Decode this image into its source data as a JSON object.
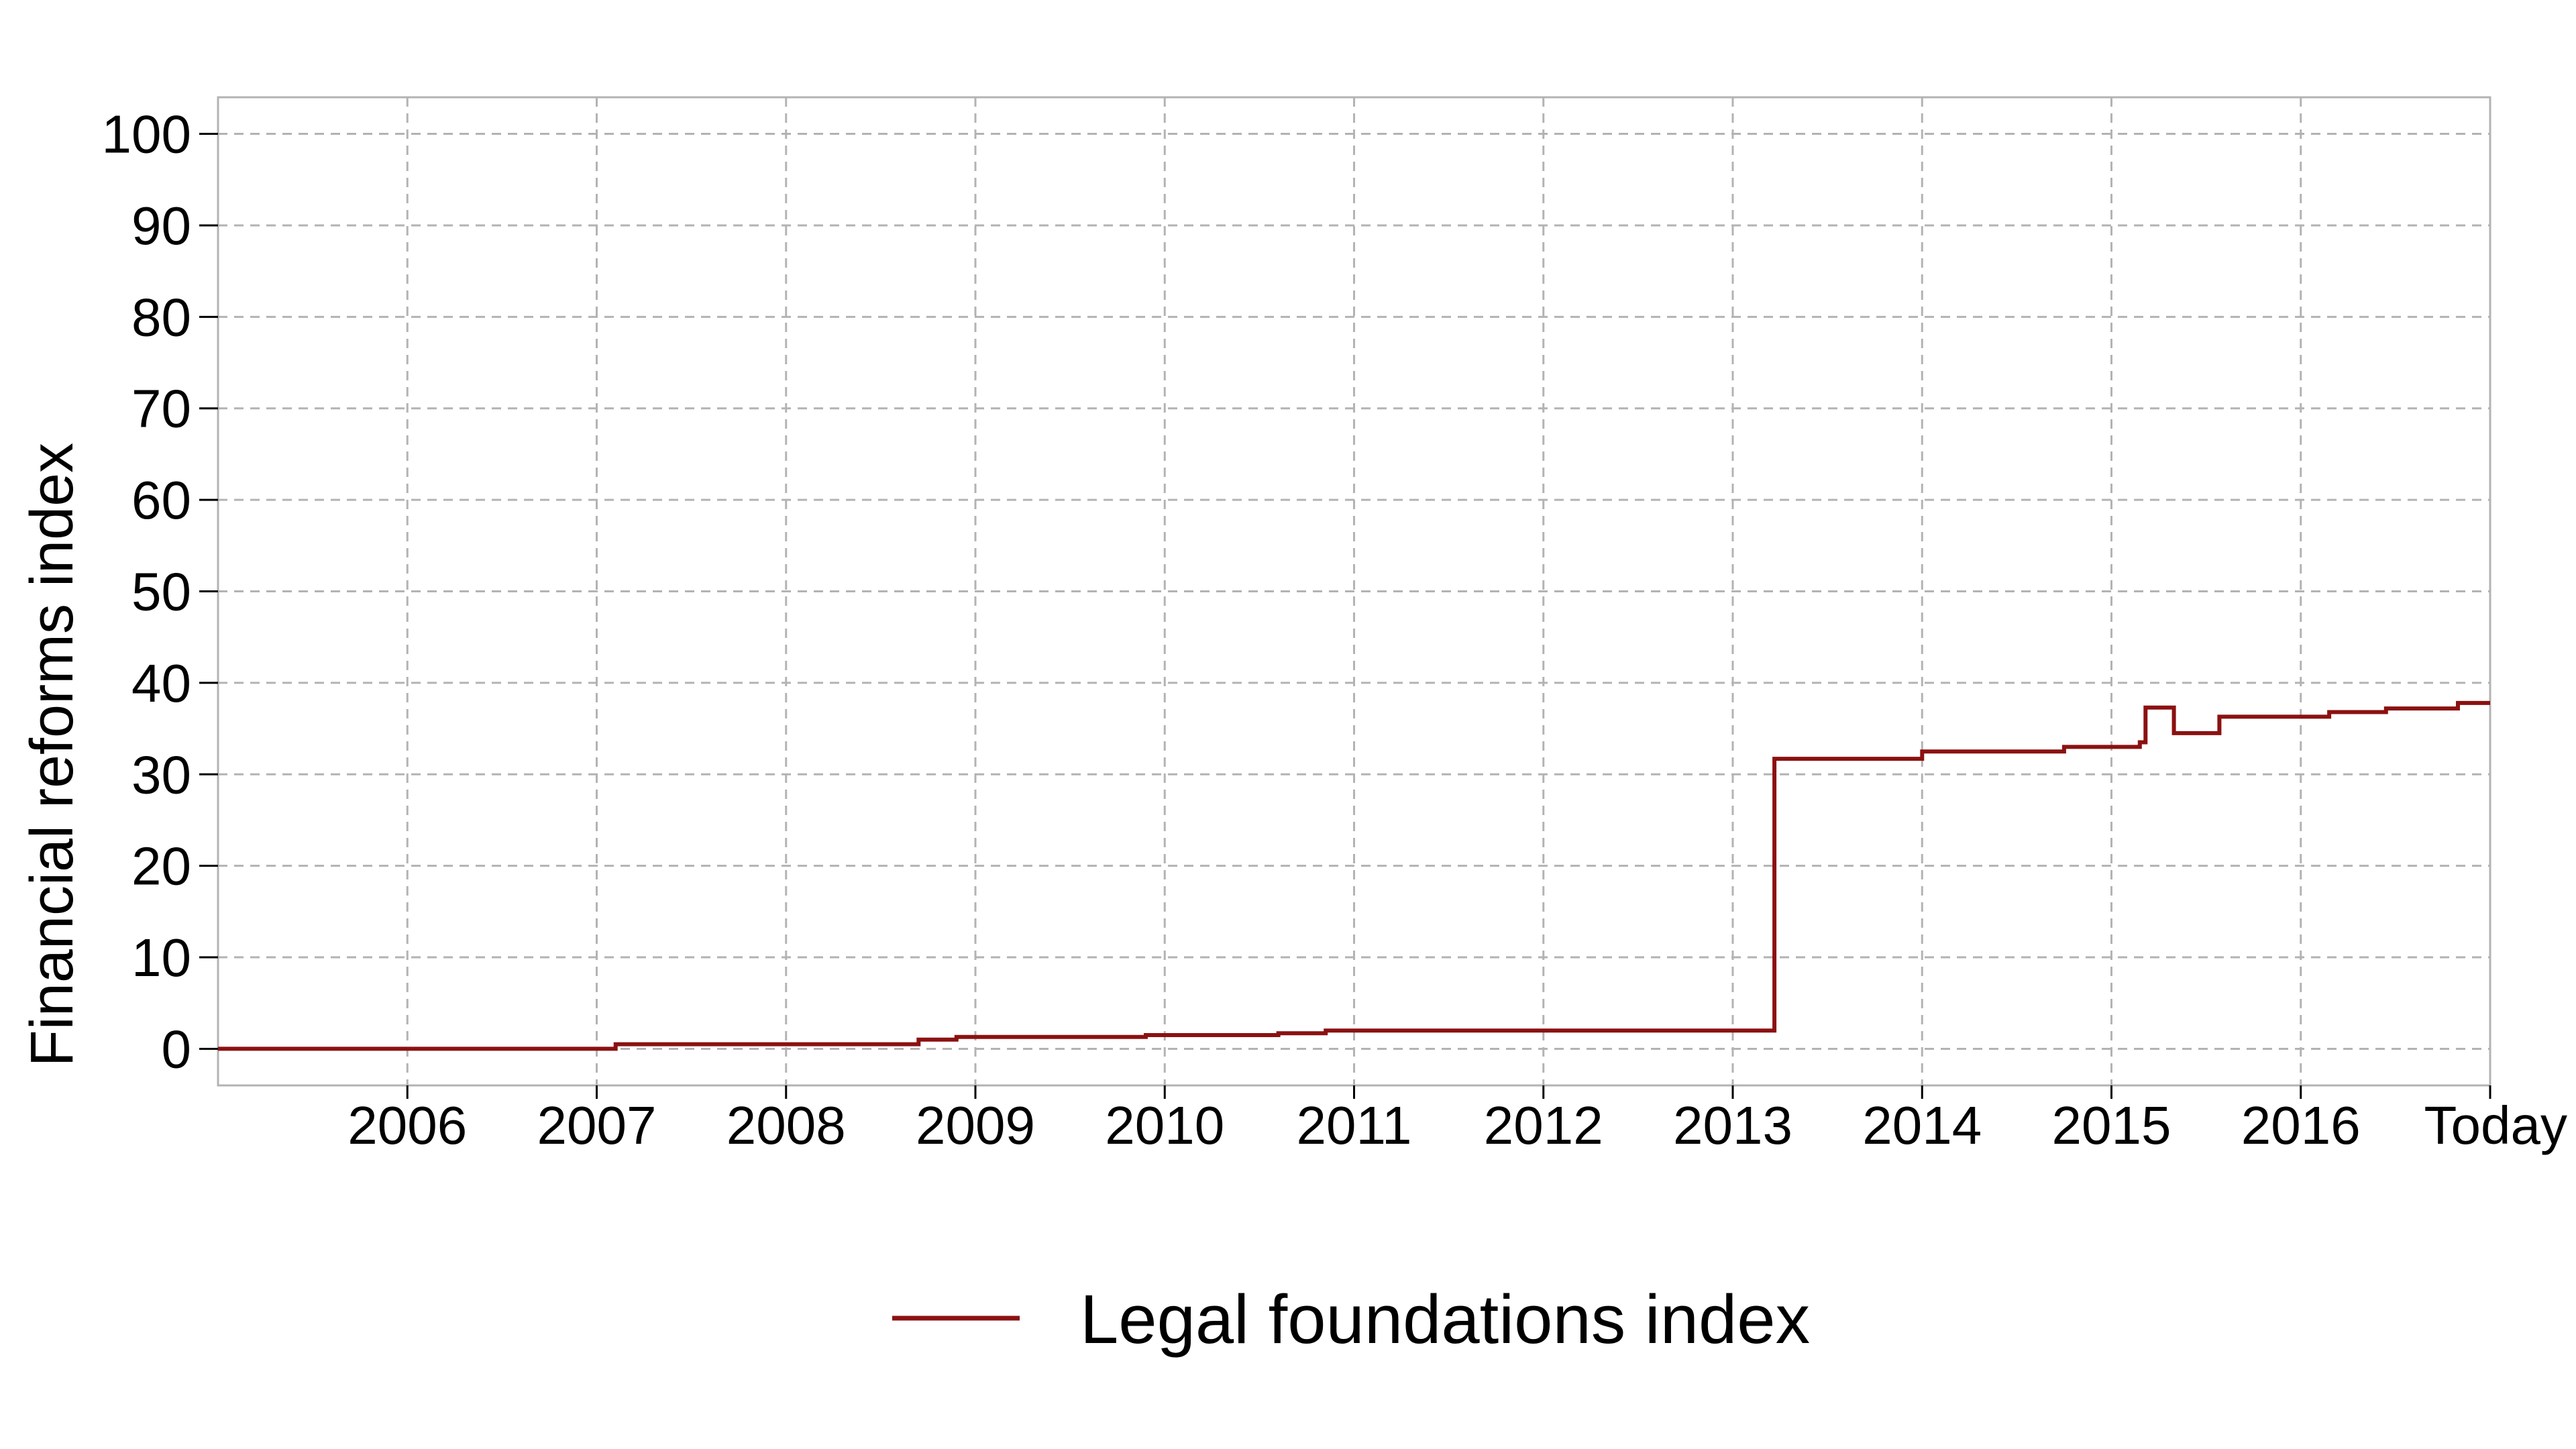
{
  "chart_data": {
    "type": "line",
    "title": "",
    "xlabel": "",
    "ylabel": "Financial reforms index",
    "xlim": [
      2005.0,
      2017.0
    ],
    "ylim": [
      -4,
      104
    ],
    "x_ticks": [
      {
        "value": 2006,
        "label": "2006"
      },
      {
        "value": 2007,
        "label": "2007"
      },
      {
        "value": 2008,
        "label": "2008"
      },
      {
        "value": 2009,
        "label": "2009"
      },
      {
        "value": 2010,
        "label": "2010"
      },
      {
        "value": 2011,
        "label": "2011"
      },
      {
        "value": 2012,
        "label": "2012"
      },
      {
        "value": 2013,
        "label": "2013"
      },
      {
        "value": 2014,
        "label": "2014"
      },
      {
        "value": 2015,
        "label": "2015"
      },
      {
        "value": 2016,
        "label": "2016"
      },
      {
        "value": 2017,
        "label": "Today"
      }
    ],
    "y_ticks": [
      0,
      10,
      20,
      30,
      40,
      50,
      60,
      70,
      80,
      90,
      100
    ],
    "grid": true,
    "legend": {
      "position": "bottom"
    },
    "series": [
      {
        "name": "Legal foundations index",
        "color": "#8b1111",
        "step": true,
        "points": [
          [
            2005.0,
            0.0
          ],
          [
            2007.1,
            0.5
          ],
          [
            2008.7,
            1.0
          ],
          [
            2008.9,
            1.3
          ],
          [
            2009.9,
            1.5
          ],
          [
            2010.6,
            1.7
          ],
          [
            2010.85,
            2.0
          ],
          [
            2013.22,
            31.7
          ],
          [
            2014.0,
            32.5
          ],
          [
            2014.75,
            33.0
          ],
          [
            2015.15,
            33.5
          ],
          [
            2015.18,
            37.3
          ],
          [
            2015.33,
            34.5
          ],
          [
            2015.57,
            36.3
          ],
          [
            2016.15,
            36.8
          ],
          [
            2016.45,
            37.2
          ],
          [
            2016.83,
            37.8
          ],
          [
            2017.0,
            37.8
          ]
        ]
      }
    ]
  }
}
